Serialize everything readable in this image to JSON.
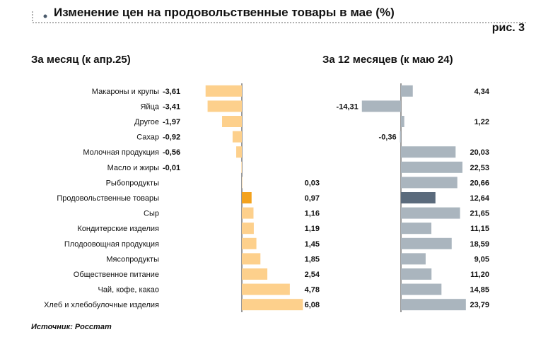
{
  "header": {
    "title": "Изменение цен на продовольственные товары в мае (%)",
    "figure_label": "рис. 3"
  },
  "source": "Источник: Росстат",
  "colors": {
    "left_bar": "#fdd08c",
    "left_highlight": "#f3a21e",
    "right_bar": "#aab5be",
    "right_highlight": "#5b6b7c",
    "axis": "#333333",
    "dotted_line": "#666666"
  },
  "chart_data": [
    {
      "type": "bar",
      "orientation": "horizontal",
      "subtitle": "За месяц (к апр.25)",
      "categories": [
        "Макароны и крупы",
        "Яйца",
        "Другое",
        "Сахар",
        "Молочная продукция",
        "Масло и жиры",
        "Рыбопродукты",
        "Продовольственные товары",
        "Сыр",
        "Кондитерские изделия",
        "Плодоовощная продукция",
        "Мясопродукты",
        "Общественное питание",
        "Чай, кофе, какао",
        "Хлеб и хлебобулочные изделия"
      ],
      "values": [
        -3.61,
        -3.41,
        -1.97,
        -0.92,
        -0.56,
        -0.01,
        0.03,
        0.97,
        1.16,
        1.19,
        1.45,
        1.85,
        2.54,
        4.78,
        6.08
      ],
      "value_labels": [
        "-3,61",
        "-3,41",
        "-1,97",
        "-0,92",
        "-0,56",
        "-0,01",
        "0,03",
        "0,97",
        "1,16",
        "1,19",
        "1,45",
        "1,85",
        "2,54",
        "4,78",
        "6,08"
      ],
      "highlight_index": 7
    },
    {
      "type": "bar",
      "orientation": "horizontal",
      "subtitle": "За 12 месяцев (к маю 24)",
      "categories": [
        "Макароны и крупы",
        "Яйца",
        "Другое",
        "Сахар",
        "Молочная продукция",
        "Масло и жиры",
        "Рыбопродукты",
        "Продовольственные товары",
        "Сыр",
        "Кондитерские изделия",
        "Плодоовощная продукция",
        "Мясопродукты",
        "Общественное питание",
        "Чай, кофе, какао",
        "Хлеб и хлебобулочные изделия"
      ],
      "values": [
        4.34,
        -14.31,
        1.22,
        -0.36,
        20.03,
        22.53,
        20.66,
        12.64,
        21.65,
        11.15,
        18.59,
        9.05,
        11.2,
        14.85,
        23.79
      ],
      "value_labels": [
        "4,34",
        "-14,31",
        "1,22",
        "-0,36",
        "20,03",
        "22,53",
        "20,66",
        "12,64",
        "21,65",
        "11,15",
        "18,59",
        "9,05",
        "11,20",
        "14,85",
        "23,79"
      ],
      "highlight_index": 7
    }
  ]
}
